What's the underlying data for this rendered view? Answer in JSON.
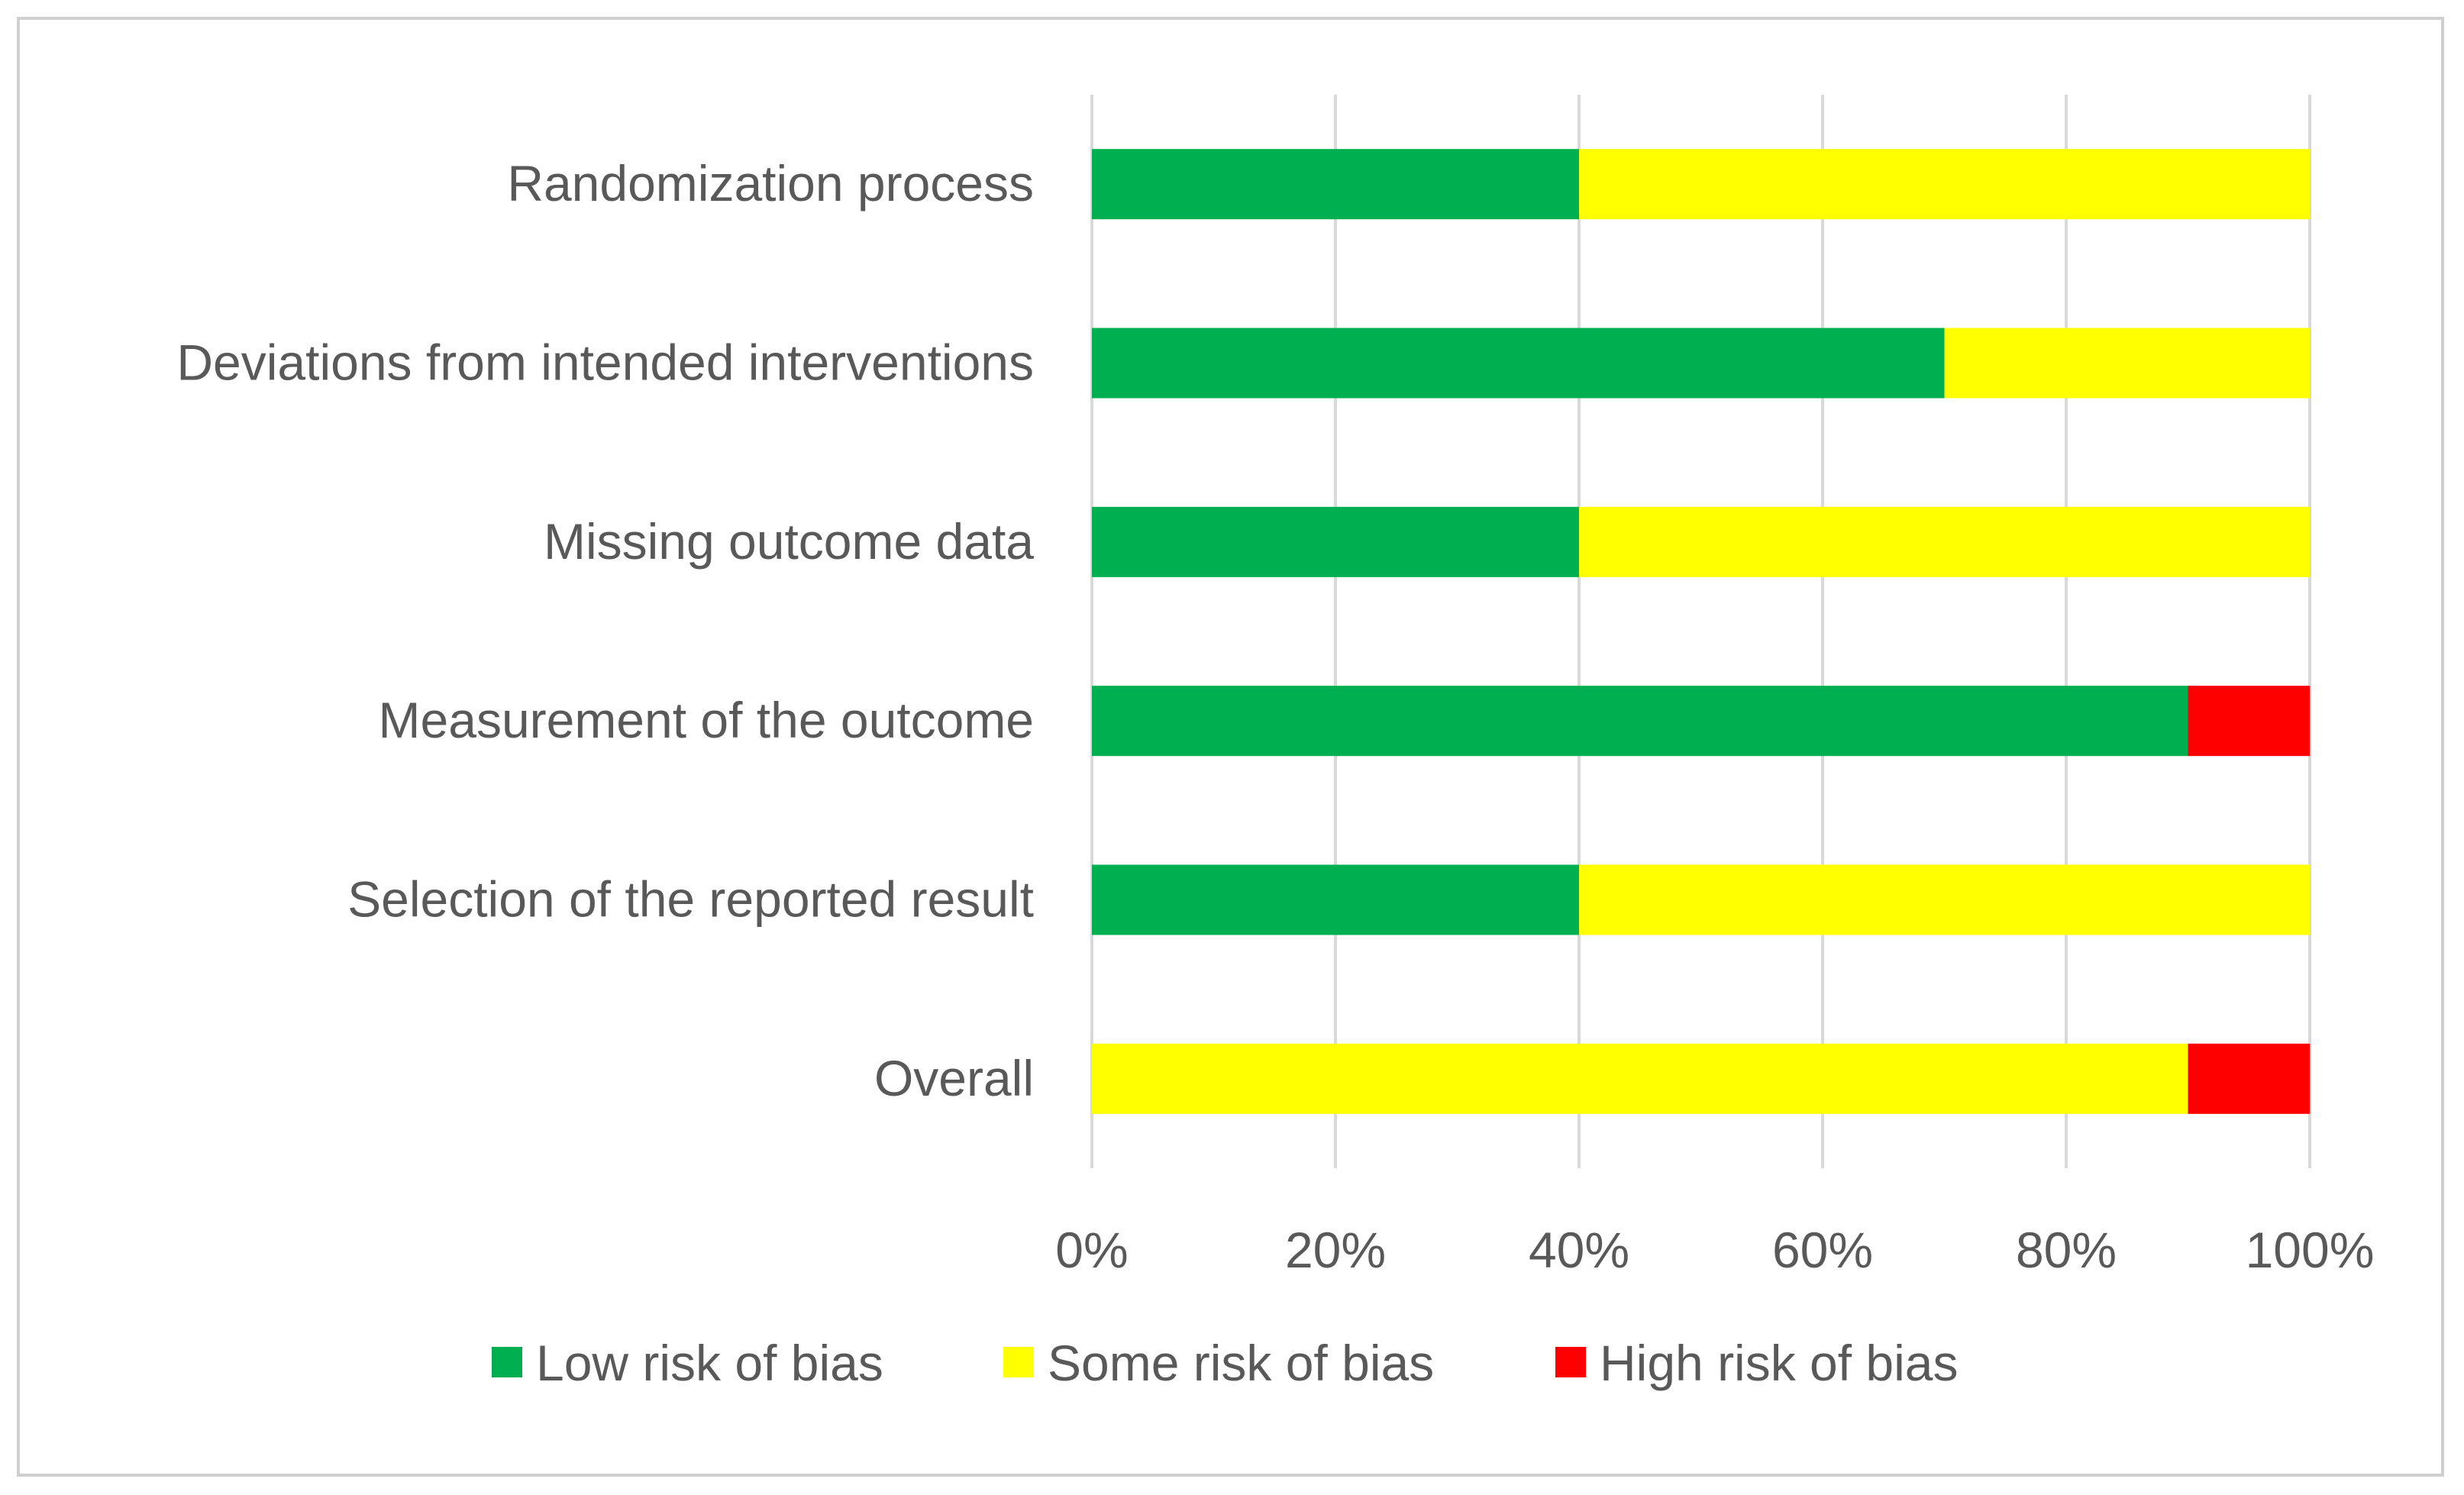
{
  "chart_data": {
    "type": "bar",
    "orientation": "horizontal",
    "stacked": true,
    "categories": [
      "Randomization process",
      "Deviations from intended interventions",
      "Missing outcome data",
      "Measurement of the outcome",
      "Selection of the reported result",
      "Overall"
    ],
    "series": [
      {
        "name": "Low risk of bias",
        "color": "#00b050",
        "values": [
          40,
          70,
          40,
          90,
          40,
          0
        ]
      },
      {
        "name": "Some risk of bias",
        "color": "#ffff00",
        "values": [
          60,
          30,
          60,
          0,
          60,
          90
        ]
      },
      {
        "name": "High risk of bias",
        "color": "#ff0000",
        "values": [
          0,
          0,
          0,
          10,
          0,
          10
        ]
      }
    ],
    "xlim": [
      0,
      100
    ],
    "xticks": [
      "0%",
      "20%",
      "40%",
      "60%",
      "80%",
      "100%"
    ],
    "grid": "vertical",
    "legend_position": "bottom",
    "title": "",
    "xlabel": "",
    "ylabel": ""
  }
}
